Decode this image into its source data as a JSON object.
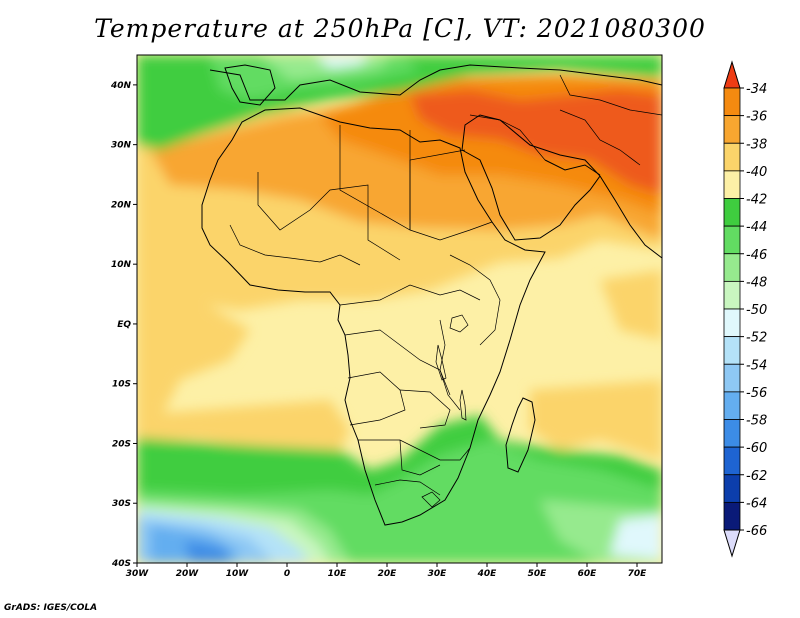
{
  "title": "Temperature at 250hPa [C], VT: 2021080300",
  "credit": "GrADS: IGES/COLA",
  "map": {
    "lon_range": [
      -30,
      75
    ],
    "lat_range": [
      -40,
      45
    ],
    "lat_ticks": [
      {
        "value": 40,
        "label": "40N"
      },
      {
        "value": 30,
        "label": "30N"
      },
      {
        "value": 20,
        "label": "20N"
      },
      {
        "value": 10,
        "label": "10N"
      },
      {
        "value": 0,
        "label": "EQ"
      },
      {
        "value": -10,
        "label": "10S"
      },
      {
        "value": -20,
        "label": "20S"
      },
      {
        "value": -30,
        "label": "30S"
      },
      {
        "value": -40,
        "label": "40S"
      }
    ],
    "lon_ticks": [
      {
        "value": -30,
        "label": "30W"
      },
      {
        "value": -20,
        "label": "20W"
      },
      {
        "value": -10,
        "label": "10W"
      },
      {
        "value": 0,
        "label": "0"
      },
      {
        "value": 10,
        "label": "10E"
      },
      {
        "value": 20,
        "label": "20E"
      },
      {
        "value": 30,
        "label": "30E"
      },
      {
        "value": 40,
        "label": "40E"
      },
      {
        "value": 50,
        "label": "50E"
      },
      {
        "value": 60,
        "label": "60E"
      },
      {
        "value": 70,
        "label": "70E"
      }
    ]
  },
  "colorbar": {
    "levels": [
      {
        "label": "-34",
        "color": "#f05a1e"
      },
      {
        "label": "-36",
        "color": "#f58a10"
      },
      {
        "label": "-38",
        "color": "#f8a630"
      },
      {
        "label": "-40",
        "color": "#fbd46a"
      },
      {
        "label": "-42",
        "color": "#fdf0a6"
      },
      {
        "label": "-44",
        "color": "#3fcd3f"
      },
      {
        "label": "-46",
        "color": "#62dc62"
      },
      {
        "label": "-48",
        "color": "#96ea8e"
      },
      {
        "label": "-50",
        "color": "#c9f6c0"
      },
      {
        "label": "-52",
        "color": "#e0f8fc"
      },
      {
        "label": "-54",
        "color": "#b4e2f8"
      },
      {
        "label": "-56",
        "color": "#8ec8f4"
      },
      {
        "label": "-58",
        "color": "#64aef0"
      },
      {
        "label": "-60",
        "color": "#3c8ce6"
      },
      {
        "label": "-62",
        "color": "#1e64d2"
      },
      {
        "label": "-64",
        "color": "#0c3eac"
      },
      {
        "label": "-66",
        "color": "#0a1a78"
      }
    ],
    "top_cap_color": "#ee3c14",
    "bottom_cap_color": "#dcdcfa"
  }
}
